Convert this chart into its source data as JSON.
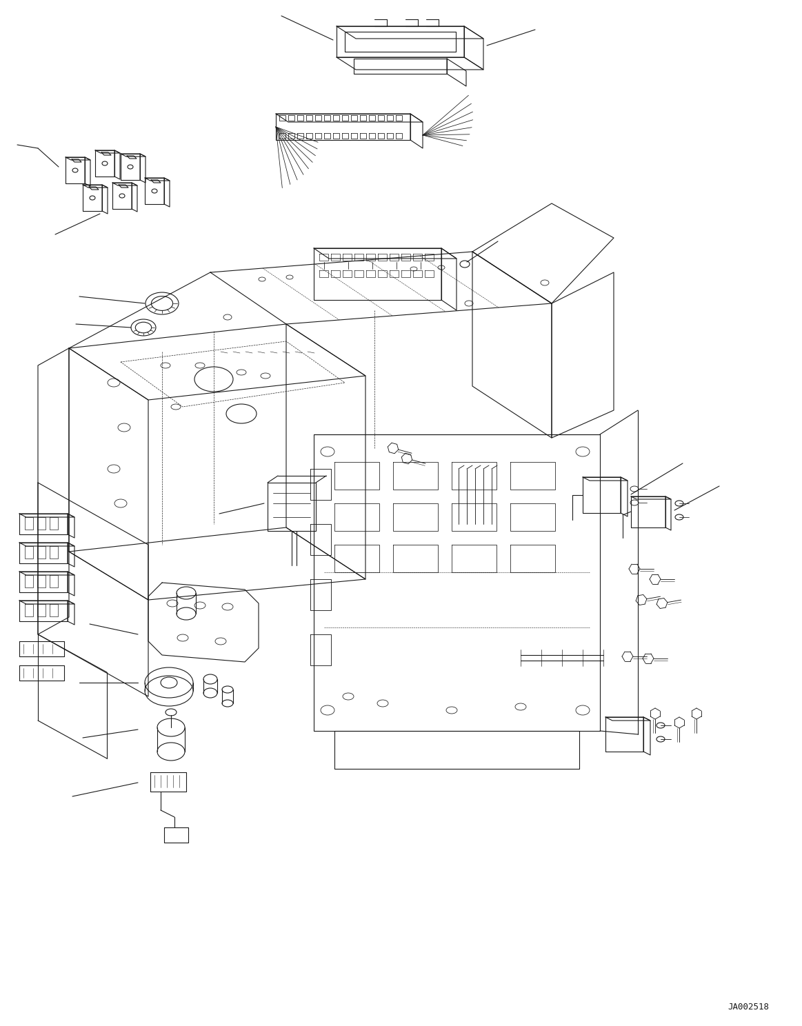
{
  "bg_color": "#ffffff",
  "line_color": "#1a1a1a",
  "line_width": 0.8,
  "figure_width": 11.63,
  "figure_height": 14.88,
  "dpi": 100,
  "watermark_text": "JA002518",
  "watermark_fontsize": 9
}
